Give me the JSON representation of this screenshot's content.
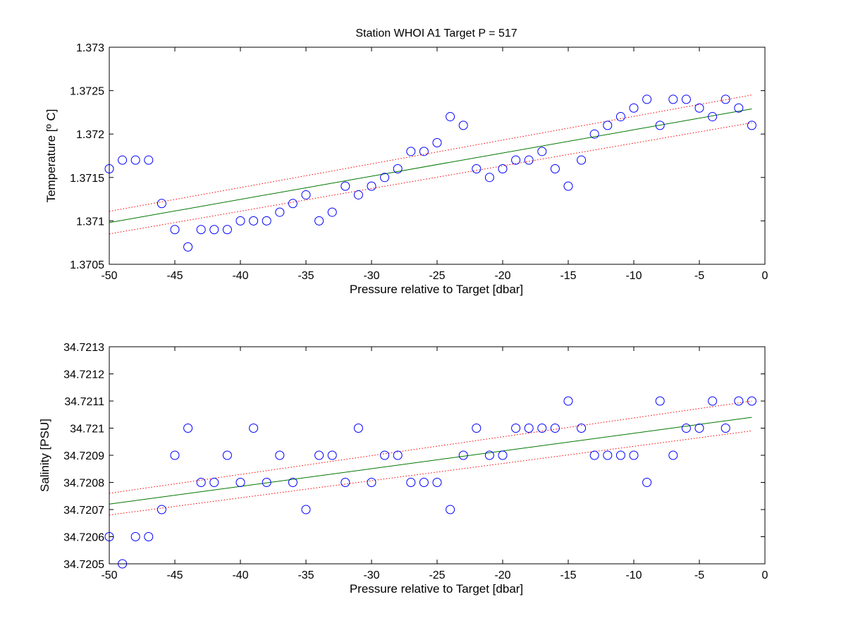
{
  "figure_title": "Station  WHOI A1 Target P = 517",
  "colors": {
    "markers": "#0000ff",
    "fit": "#007700",
    "bounds": "#ff0000",
    "axes": "#000000"
  },
  "chart_data": [
    {
      "type": "scatter",
      "title": "Station  WHOI A1 Target P = 517",
      "xlabel": "Pressure relative to Target [dbar]",
      "ylabel": "Temperature [º C]",
      "xlim": [
        -50,
        0
      ],
      "ylim": [
        1.3705,
        1.373
      ],
      "xticks": [
        -50,
        -45,
        -40,
        -35,
        -30,
        -25,
        -20,
        -15,
        -10,
        -5,
        0
      ],
      "yticks": [
        "1.3705",
        "1.371",
        "1.3715",
        "1.372",
        "1.3725",
        "1.373"
      ],
      "grid": false,
      "series": [
        {
          "marker": "circle",
          "x": [
            -50,
            -49,
            -48,
            -47,
            -46,
            -45,
            -44,
            -43,
            -42,
            -41,
            -40,
            -39,
            -38,
            -37,
            -36,
            -35,
            -34,
            -33,
            -32,
            -31,
            -30,
            -29,
            -28,
            -27,
            -26,
            -25,
            -24,
            -23,
            -22,
            -21,
            -20,
            -19,
            -18,
            -17,
            -16,
            -15,
            -14,
            -13,
            -12,
            -11,
            -10,
            -9,
            -8,
            -7,
            -6,
            -5,
            -4,
            -3,
            -2,
            -1
          ],
          "y": [
            1.3716,
            1.3717,
            1.3717,
            1.3717,
            1.3712,
            1.3709,
            1.3707,
            1.3709,
            1.3709,
            1.3709,
            1.371,
            1.371,
            1.371,
            1.3711,
            1.3712,
            1.3713,
            1.371,
            1.3711,
            1.3714,
            1.3713,
            1.3714,
            1.3715,
            1.3716,
            1.3718,
            1.3718,
            1.3719,
            1.3722,
            1.3721,
            1.3716,
            1.3715,
            1.3716,
            1.3717,
            1.3717,
            1.3718,
            1.3716,
            1.3714,
            1.3717,
            1.372,
            1.3721,
            1.3722,
            1.3723,
            1.3724,
            1.3721,
            1.3724,
            1.3724,
            1.3723,
            1.3722,
            1.3724,
            1.3723,
            1.3721
          ]
        },
        {
          "line": "fit",
          "x": [
            -50,
            -1
          ],
          "y": [
            1.37098,
            1.37229
          ]
        },
        {
          "line": "upper-bound",
          "x": [
            -50,
            -1
          ],
          "y": [
            1.37111,
            1.37245
          ]
        },
        {
          "line": "lower-bound",
          "x": [
            -50,
            -1
          ],
          "y": [
            1.37085,
            1.37213
          ]
        }
      ]
    },
    {
      "type": "scatter",
      "xlabel": "Pressure relative to Target [dbar]",
      "ylabel": "Salinity [PSU]",
      "xlim": [
        -50,
        0
      ],
      "ylim": [
        34.7205,
        34.7213
      ],
      "xticks": [
        -50,
        -45,
        -40,
        -35,
        -30,
        -25,
        -20,
        -15,
        -10,
        -5,
        0
      ],
      "yticks": [
        "34.7205",
        "34.7206",
        "34.7207",
        "34.7208",
        "34.7209",
        "34.721",
        "34.7211",
        "34.7212",
        "34.7213"
      ],
      "grid": false,
      "series": [
        {
          "marker": "circle",
          "x": [
            -50,
            -49,
            -48,
            -47,
            -46,
            -45,
            -44,
            -43,
            -42,
            -41,
            -40,
            -39,
            -38,
            -37,
            -36,
            -35,
            -34,
            -33,
            -32,
            -31,
            -30,
            -29,
            -28,
            -27,
            -26,
            -25,
            -24,
            -23,
            -22,
            -21,
            -20,
            -19,
            -18,
            -17,
            -16,
            -15,
            -14,
            -13,
            -12,
            -11,
            -10,
            -9,
            -8,
            -7,
            -6,
            -5,
            -4,
            -3,
            -2,
            -1
          ],
          "y": [
            34.7206,
            34.7205,
            34.7206,
            34.7206,
            34.7207,
            34.7209,
            34.721,
            34.7208,
            34.7208,
            34.7209,
            34.7208,
            34.721,
            34.7208,
            34.7209,
            34.7208,
            34.7207,
            34.7209,
            34.7209,
            34.7208,
            34.721,
            34.7208,
            34.7209,
            34.7209,
            34.7208,
            34.7208,
            34.7208,
            34.7207,
            34.7209,
            34.721,
            34.7209,
            34.7209,
            34.721,
            34.721,
            34.721,
            34.721,
            34.7211,
            34.721,
            34.7209,
            34.7209,
            34.7209,
            34.7209,
            34.7208,
            34.7211,
            34.7209,
            34.721,
            34.721,
            34.7211,
            34.721,
            34.7211,
            34.7211
          ]
        },
        {
          "line": "fit",
          "x": [
            -50,
            -1
          ],
          "y": [
            34.72072,
            34.72104
          ]
        },
        {
          "line": "upper-bound",
          "x": [
            -50,
            -1
          ],
          "y": [
            34.72076,
            34.7211
          ]
        },
        {
          "line": "lower-bound",
          "x": [
            -50,
            -1
          ],
          "y": [
            34.72068,
            34.72099
          ]
        }
      ]
    }
  ]
}
